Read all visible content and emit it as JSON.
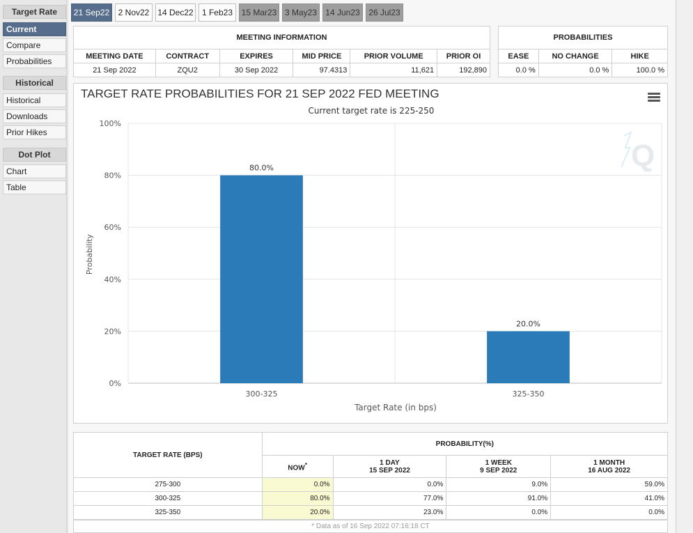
{
  "sidebar": {
    "sections": [
      {
        "title": "Target Rate",
        "items": [
          "Current",
          "Compare",
          "Probabilities"
        ]
      },
      {
        "title": "Historical",
        "items": [
          "Historical",
          "Downloads",
          "Prior Hikes"
        ]
      },
      {
        "title": "Dot Plot",
        "items": [
          "Chart",
          "Table"
        ]
      }
    ]
  },
  "tabs": [
    "21 Sep22",
    "2 Nov22",
    "14 Dec22",
    "1 Feb23",
    "15 Mar23",
    "3 May23",
    "14 Jun23",
    "26 Jul23"
  ],
  "meeting_info": {
    "title": "MEETING INFORMATION",
    "headers": [
      "MEETING DATE",
      "CONTRACT",
      "EXPIRES",
      "MID PRICE",
      "PRIOR VOLUME",
      "PRIOR OI"
    ],
    "values": [
      "21 Sep 2022",
      "ZQU2",
      "30 Sep 2022",
      "97.4313",
      "11,621",
      "192,890"
    ]
  },
  "probabilities": {
    "title": "PROBABILITIES",
    "headers": [
      "EASE",
      "NO CHANGE",
      "HIKE"
    ],
    "values": [
      "0.0 %",
      "0.0 %",
      "100.0 %"
    ]
  },
  "chart_data": {
    "type": "bar",
    "title": "TARGET RATE PROBABILITIES FOR 21 SEP 2022 FED MEETING",
    "subtitle": "Current target rate is 225-250",
    "categories": [
      "300-325",
      "325-350"
    ],
    "values": [
      80.0,
      20.0
    ],
    "data_labels": [
      "80.0%",
      "20.0%"
    ],
    "xlabel": "Target Rate (in bps)",
    "ylabel": "Probability",
    "ylim": [
      0,
      100
    ],
    "yticks": [
      "0%",
      "20%",
      "40%",
      "60%",
      "80%",
      "100%"
    ],
    "color": "#2b7bb9",
    "grid": true
  },
  "bottom_table": {
    "target_rate_header": "TARGET RATE (BPS)",
    "probability_header": "PROBABILITY(%)",
    "now_header": "NOW",
    "now_marker": "*",
    "columns": [
      {
        "line1": "1 DAY",
        "line2": "15 SEP 2022"
      },
      {
        "line1": "1 WEEK",
        "line2": "9 SEP 2022"
      },
      {
        "line1": "1 MONTH",
        "line2": "16 AUG 2022"
      }
    ],
    "rows": [
      {
        "rate": "275-300",
        "now": "0.0%",
        "day": "0.0%",
        "week": "9.0%",
        "month": "59.0%"
      },
      {
        "rate": "300-325",
        "now": "80.0%",
        "day": "77.0%",
        "week": "91.0%",
        "month": "41.0%"
      },
      {
        "rate": "325-350",
        "now": "20.0%",
        "day": "23.0%",
        "week": "0.0%",
        "month": "0.0%"
      }
    ],
    "footnote": "* Data as of 16 Sep 2022 07:16:18 CT"
  }
}
